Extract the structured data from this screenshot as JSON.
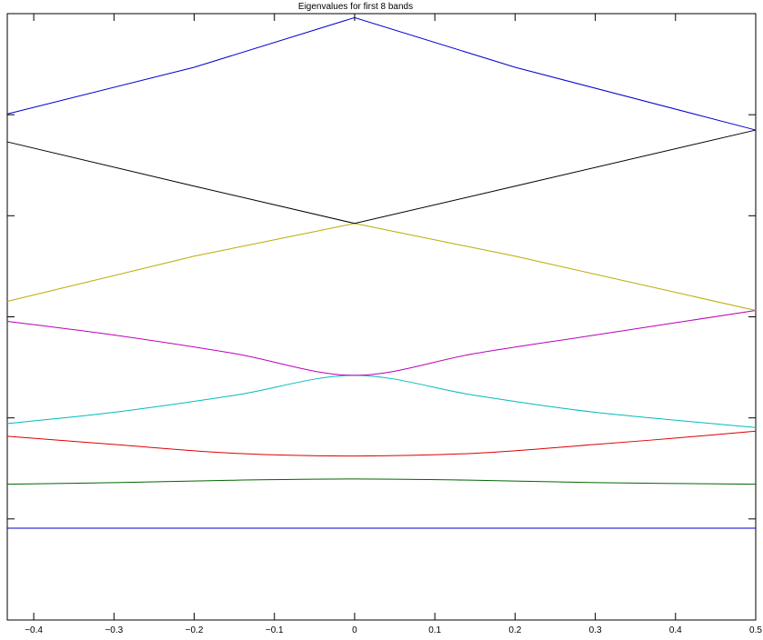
{
  "chart_data": {
    "type": "line",
    "title": "Eigenvalues for first 8 bands",
    "xlabel": "",
    "ylabel": "",
    "xlim": [
      -0.433,
      0.5
    ],
    "ylim": [
      0,
      1
    ],
    "x_ticks": [
      -0.4,
      -0.3,
      -0.2,
      -0.1,
      0,
      0.1,
      0.2,
      0.3,
      0.4,
      0.5
    ],
    "x_tick_labels": [
      "−0.4",
      "−0.3",
      "−0.2",
      "−0.1",
      "0",
      "0.1",
      "0.2",
      "0.3",
      "0.4",
      "0.5"
    ],
    "y_ticks": [
      0.1667,
      0.3333,
      0.5,
      0.6667,
      0.8333
    ],
    "grid": false,
    "series": [
      {
        "color": "#0000cc",
        "x": [
          -0.433,
          0,
          0.5
        ],
        "y": [
          0.1515,
          0.1515,
          0.1515
        ]
      },
      {
        "color": "#006600",
        "x": [
          -0.433,
          -0.3,
          -0.15,
          0,
          0.15,
          0.3,
          0.5
        ],
        "y": [
          0.224,
          0.2265,
          0.2305,
          0.2325,
          0.2305,
          0.2265,
          0.224
        ]
      },
      {
        "color": "#dd0000",
        "x": [
          -0.433,
          -0.3,
          -0.15,
          0,
          0.15,
          0.3,
          0.4,
          0.5
        ],
        "y": [
          0.303,
          0.2895,
          0.275,
          0.2705,
          0.275,
          0.2895,
          0.3,
          0.3115
        ]
      },
      {
        "color": "#00bbbb",
        "x": [
          -0.433,
          -0.3,
          -0.15,
          0,
          0.15,
          0.3,
          0.5
        ],
        "y": [
          0.324,
          0.3425,
          0.3705,
          0.4035,
          0.3705,
          0.3425,
          0.3175
        ]
      },
      {
        "color": "#bb00bb",
        "x": [
          -0.433,
          -0.3,
          -0.15,
          0,
          0.15,
          0.3,
          0.5
        ],
        "y": [
          0.4925,
          0.47,
          0.4395,
          0.4035,
          0.4395,
          0.47,
          0.5105
        ]
      },
      {
        "color": "#bbaa00",
        "x": [
          -0.433,
          -0.2,
          0,
          0.2,
          0.5
        ],
        "y": [
          0.5255,
          0.6,
          0.654,
          0.6,
          0.5105
        ]
      },
      {
        "color": "#000000",
        "x": [
          -0.433,
          -0.2,
          0,
          0.2,
          0.5
        ],
        "y": [
          0.7885,
          0.7155,
          0.654,
          0.7155,
          0.808
        ]
      },
      {
        "color": "#0000cc",
        "x": [
          -0.433,
          -0.2,
          0,
          0.2,
          0.5
        ],
        "y": [
          0.8345,
          0.9115,
          0.9935,
          0.9115,
          0.808
        ]
      }
    ]
  }
}
